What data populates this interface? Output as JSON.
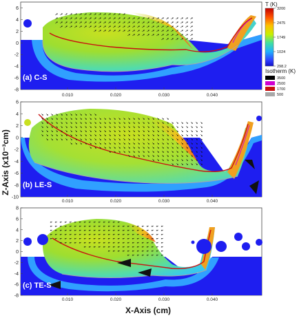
{
  "chart_data": {
    "type": "heatmap",
    "xlabel": "X-Axis (cm)",
    "ylabel": "Z-Axis (x10⁻³cm)",
    "panels": [
      {
        "label": "(a) C-S",
        "ylim": [
          -8,
          7
        ],
        "yticks": [
          6,
          4,
          2,
          0,
          -2,
          -4,
          -6,
          -8
        ],
        "xticks": [
          "0.010",
          "0.020",
          "0.030",
          "0.040"
        ],
        "xtick_values": [
          0.01,
          0.02,
          0.03,
          0.04
        ]
      },
      {
        "label": "(b) LE-S",
        "ylim": [
          -10,
          6
        ],
        "yticks": [
          6,
          4,
          2,
          0,
          -2,
          -4,
          -6,
          -8,
          -10
        ],
        "xticks": [
          "0.010",
          "0.020",
          "0.030",
          "0.040"
        ],
        "xtick_values": [
          0.01,
          0.02,
          0.03,
          0.04
        ]
      },
      {
        "label": "(c) TE-S",
        "ylim": [
          -8,
          8
        ],
        "yticks": [
          8,
          6,
          4,
          2,
          0,
          -2,
          -4,
          -6,
          -8
        ],
        "xticks": [
          "0.010",
          "0.020",
          "0.030",
          "0.040"
        ],
        "xtick_values": [
          0.01,
          0.02,
          0.03,
          0.04
        ]
      }
    ],
    "colorbar": {
      "title": "T (K)",
      "ticks": [
        "3200",
        "2475",
        "1749",
        "1024",
        "298.2"
      ],
      "values": [
        3200,
        2475,
        1749,
        1024,
        298.2
      ]
    },
    "isotherm_legend": {
      "title": "Isotherm (K)",
      "entries": [
        {
          "label": "3500",
          "color": "#000000"
        },
        {
          "label": "2500",
          "color": "#d000d0"
        },
        {
          "label": "1700",
          "color": "#c81010"
        },
        {
          "label": "500",
          "color": "#a8a8a8"
        }
      ]
    }
  }
}
